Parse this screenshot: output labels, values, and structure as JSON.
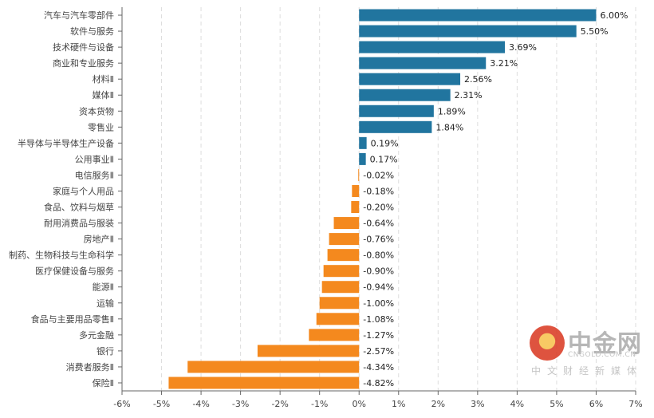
{
  "chart_data": {
    "type": "bar",
    "orientation": "horizontal",
    "categories": [
      "汽车与汽车零部件",
      "软件与服务",
      "技术硬件与设备",
      "商业和专业服务",
      "材料Ⅱ",
      "媒体Ⅱ",
      "资本货物",
      "零售业",
      "半导体与半导体生产设备",
      "公用事业Ⅱ",
      "电信服务Ⅱ",
      "家庭与个人用品",
      "食品、饮料与烟草",
      "耐用消费品与服装",
      "房地产Ⅱ",
      "制药、生物科技与生命科学",
      "医疗保健设备与服务",
      "能源Ⅱ",
      "运输",
      "食品与主要用品零售Ⅱ",
      "多元金融",
      "银行",
      "消费者服务Ⅱ",
      "保险Ⅱ"
    ],
    "values": [
      6.0,
      5.5,
      3.69,
      3.21,
      2.56,
      2.31,
      1.89,
      1.84,
      0.19,
      0.17,
      -0.02,
      -0.18,
      -0.2,
      -0.64,
      -0.76,
      -0.8,
      -0.9,
      -0.94,
      -1.0,
      -1.08,
      -1.27,
      -2.57,
      -4.34,
      -4.82
    ],
    "data_labels": [
      "6.00%",
      "5.50%",
      "3.69%",
      "3.21%",
      "2.56%",
      "2.31%",
      "1.89%",
      "1.84%",
      "0.19%",
      "0.17%",
      "-0.02%",
      "-0.18%",
      "-0.20%",
      "-0.64%",
      "-0.76%",
      "-0.80%",
      "-0.90%",
      "-0.94%",
      "-1.00%",
      "-1.08%",
      "-1.27%",
      "-2.57%",
      "-4.34%",
      "-4.82%"
    ],
    "xlim": [
      -6,
      7
    ],
    "x_ticks": [
      "-6%",
      "-5%",
      "-4%",
      "-3%",
      "-2%",
      "-1%",
      "0%",
      "1%",
      "2%",
      "3%",
      "4%",
      "5%",
      "6%",
      "7%"
    ],
    "grid": "vertical dashed",
    "colors": {
      "positive": "#21759f",
      "negative": "#f4891e"
    },
    "title": "",
    "xlabel": "",
    "ylabel": ""
  },
  "watermark": {
    "brand": "中金网",
    "url": "CNGOLD.COM.CN",
    "slogan": "中文财经新媒体"
  }
}
